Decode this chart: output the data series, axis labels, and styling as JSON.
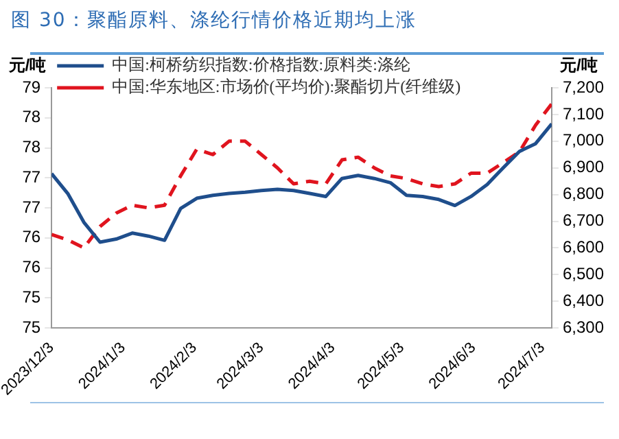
{
  "chart_data": {
    "type": "line",
    "title": "图 30：聚酯原料、涤纶行情价格近期均上涨",
    "ylabel": "元/吨",
    "y2label": "元/吨",
    "x": [
      "2023-12-03",
      "2023-12-10",
      "2023-12-17",
      "2023-12-24",
      "2023-12-31",
      "2024-01-07",
      "2024-01-14",
      "2024-01-21",
      "2024-01-28",
      "2024-02-04",
      "2024-02-11",
      "2024-02-18",
      "2024-02-25",
      "2024-03-03",
      "2024-03-10",
      "2024-03-17",
      "2024-03-24",
      "2024-03-31",
      "2024-04-07",
      "2024-04-14",
      "2024-04-21",
      "2024-04-28",
      "2024-05-05",
      "2024-05-12",
      "2024-05-19",
      "2024-05-26",
      "2024-06-02",
      "2024-06-09",
      "2024-06-16",
      "2024-06-23",
      "2024-06-30",
      "2024-07-07"
    ],
    "series": [
      {
        "name": "中国:柯桥纺织指数:价格指数:原料类:涤纶",
        "color": "#1f4e8c",
        "line_style": "solid",
        "values": [
          77.57,
          77.24,
          76.76,
          76.43,
          76.48,
          76.58,
          76.53,
          76.46,
          76.99,
          77.16,
          77.21,
          77.24,
          77.26,
          77.29,
          77.31,
          77.29,
          77.24,
          77.19,
          77.49,
          77.54,
          77.49,
          77.42,
          77.21,
          77.19,
          77.14,
          77.04,
          77.19,
          77.39,
          77.67,
          77.94,
          78.07,
          78.4
        ]
      },
      {
        "name": "中国:华东地区:市场价(平均价):聚酯切片(纤维级)",
        "color": "#e0141e",
        "line_style": "dashed",
        "axis": "y2",
        "values": [
          6650,
          6630,
          6600,
          6680,
          6730,
          6760,
          6750,
          6760,
          6870,
          6970,
          6950,
          7000,
          7000,
          6950,
          6900,
          6840,
          6850,
          6840,
          6930,
          6940,
          6900,
          6870,
          6860,
          6840,
          6830,
          6840,
          6880,
          6880,
          6920,
          6960,
          7060,
          7140
        ]
      }
    ],
    "xlim": [
      "2023-12-03",
      "2024-07-07"
    ],
    "xticks": [
      {
        "value": "2023-12-03",
        "label": "2023/12/3"
      },
      {
        "value": "2024-01-03",
        "label": "2024/1/3"
      },
      {
        "value": "2024-02-03",
        "label": "2024/2/3"
      },
      {
        "value": "2024-03-03",
        "label": "2024/3/3"
      },
      {
        "value": "2024-04-03",
        "label": "2024/4/3"
      },
      {
        "value": "2024-05-03",
        "label": "2024/5/3"
      },
      {
        "value": "2024-06-03",
        "label": "2024/6/3"
      },
      {
        "value": "2024-07-03",
        "label": "2024/7/3"
      }
    ],
    "ylim": [
      75,
      79
    ],
    "yticks": [
      75,
      {
        "value": 75.5,
        "label": "75"
      },
      76,
      {
        "value": 76.5,
        "label": "76"
      },
      77,
      {
        "value": 77.5,
        "label": "77"
      },
      78,
      {
        "value": 78.5,
        "label": "78"
      },
      79
    ],
    "y2lim": [
      6300,
      7200
    ],
    "y2ticks": [
      {
        "value": 6300,
        "label": "6,300"
      },
      {
        "value": 6400,
        "label": "6,400"
      },
      {
        "value": 6500,
        "label": "6,500"
      },
      {
        "value": 6600,
        "label": "6,600"
      },
      {
        "value": 6700,
        "label": "6,700"
      },
      {
        "value": 6800,
        "label": "6,800"
      },
      {
        "value": 6900,
        "label": "6,900"
      },
      {
        "value": 7000,
        "label": "7,000"
      },
      {
        "value": 7100,
        "label": "7,100"
      },
      {
        "value": 7200,
        "label": "7,200"
      }
    ],
    "grid": false,
    "legend": "top left",
    "marker": "none"
  }
}
